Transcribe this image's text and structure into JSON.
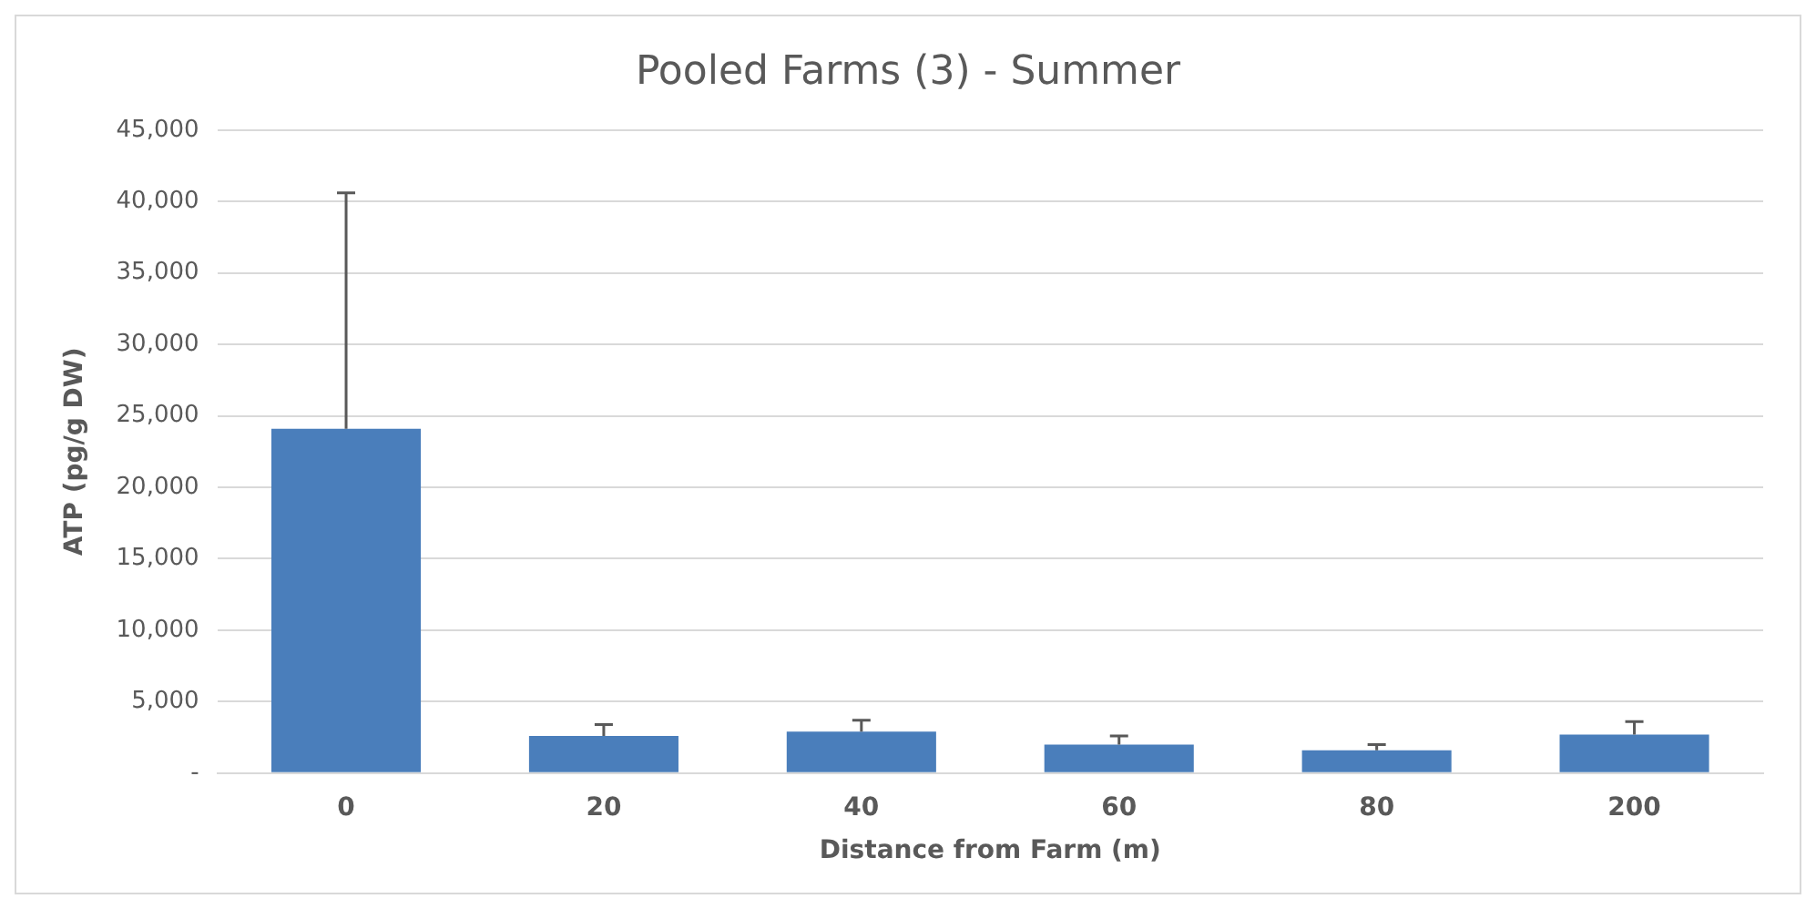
{
  "chart_data": {
    "type": "bar",
    "title": "Pooled Farms (3) - Summer",
    "xlabel": "Distance from Farm (m)",
    "ylabel": "ATP (pg/g DW)",
    "categories": [
      "0",
      "20",
      "40",
      "60",
      "80",
      "200"
    ],
    "values": [
      24100,
      2600,
      2900,
      2000,
      1600,
      2700
    ],
    "errors": [
      16500,
      800,
      800,
      600,
      400,
      900
    ],
    "color": "#4a7ebb",
    "ylim": [
      0,
      45000
    ],
    "yticks": [
      {
        "value": 0,
        "label": "-"
      },
      {
        "value": 5000,
        "label": "5,000"
      },
      {
        "value": 10000,
        "label": "10,000"
      },
      {
        "value": 15000,
        "label": "15,000"
      },
      {
        "value": 20000,
        "label": "20,000"
      },
      {
        "value": 25000,
        "label": "25,000"
      },
      {
        "value": 30000,
        "label": "30,000"
      },
      {
        "value": 35000,
        "label": "35,000"
      },
      {
        "value": 40000,
        "label": "40,000"
      },
      {
        "value": 45000,
        "label": "45,000"
      }
    ],
    "grid": "y",
    "legend": false
  }
}
